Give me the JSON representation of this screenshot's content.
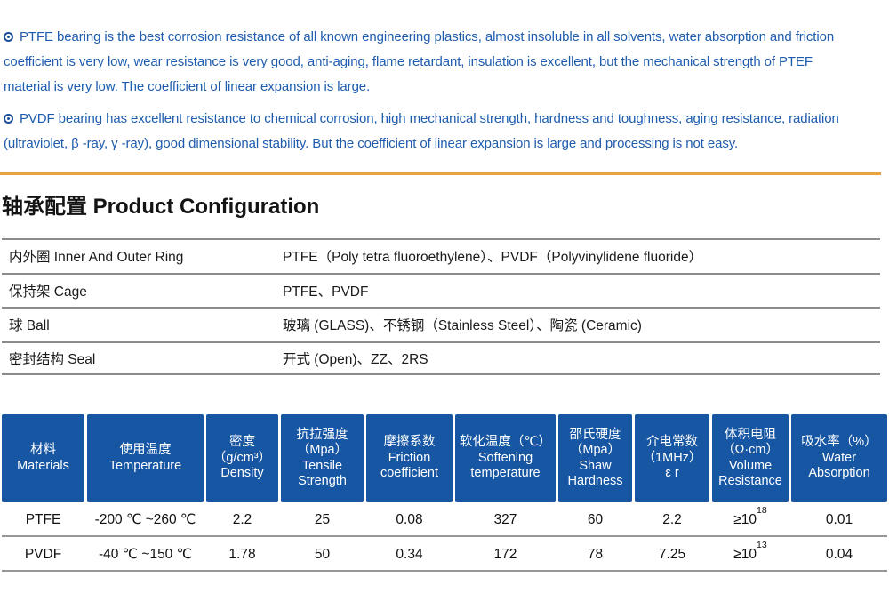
{
  "colors": {
    "paragraph_text_blue": "#1e5cae",
    "bullet_blue": "#1b4e9b",
    "rule_orange": "#e9a440",
    "table_header_blue": "#1656a3",
    "divider_gray": "#8c8c8c"
  },
  "intro": {
    "paragraphs": [
      {
        "lines": [
          "PTFE bearing is the best corrosion resistance of all known engineering plastics, almost insoluble in all solvents, water absorption and friction",
          "coefficient is very low, wear resistance is very good, anti-aging, flame retardant, insulation is excellent, but the mechanical strength of PTEF",
          "material is very low. The coefficient of linear expansion is large."
        ]
      },
      {
        "lines": [
          "PVDF bearing has excellent resistance to chemical corrosion, high mechanical strength, hardness and toughness, aging resistance, radiation",
          "(ultraviolet, β -ray, γ -ray), good dimensional stability. But the coefficient of linear expansion is large and processing is not easy."
        ]
      }
    ]
  },
  "section": {
    "title": "轴承配置 Product Configuration"
  },
  "config_table": {
    "rows": [
      {
        "label": "内外圈 Inner And Outer Ring",
        "value": "PTFE（Poly tetra fluoroethylene）、PVDF（Polyvinylidene fluoride）"
      },
      {
        "label": "保持架 Cage",
        "value": "PTFE、PVDF"
      },
      {
        "label": "球 Ball",
        "value": "玻璃 (GLASS)、不锈钢（Stainless Steel）、陶瓷 (Ceramic)"
      },
      {
        "label": "密封结构 Seal",
        "value": "开式 (Open)、ZZ、2RS"
      }
    ]
  },
  "spec_table": {
    "headers": [
      {
        "lines": [
          "材料",
          "Materials"
        ]
      },
      {
        "lines": [
          "使用温度",
          "Temperature"
        ]
      },
      {
        "lines": [
          "密度",
          "（g/cm³）",
          "Density"
        ]
      },
      {
        "lines": [
          "抗拉强度",
          "（Mpa）",
          "Tensile",
          "Strength"
        ]
      },
      {
        "lines": [
          "摩擦系数",
          "Friction",
          "coefficient"
        ]
      },
      {
        "lines": [
          "软化温度（℃）",
          "Softening",
          "temperature"
        ]
      },
      {
        "lines": [
          "邵氏硬度",
          "（Mpa）",
          "Shaw",
          "Hardness"
        ]
      },
      {
        "lines": [
          "介电常数",
          "（1MHz）",
          "ε r"
        ]
      },
      {
        "lines": [
          "体积电阻",
          "（Ω·cm）",
          "Volume",
          "Resistance"
        ]
      },
      {
        "lines": [
          "吸水率（%）",
          "Water",
          "Absorption"
        ]
      }
    ],
    "rows": [
      {
        "material": "PTFE",
        "temperature": "-200 ℃ ~260 ℃",
        "density": "2.2",
        "tensile_strength": "25",
        "friction": "0.08",
        "softening": "327",
        "hardness": "60",
        "dielectric": "2.2",
        "volume_base": "≥10",
        "volume_exp": "18",
        "water_absorption": "0.01"
      },
      {
        "material": "PVDF",
        "temperature": "-40 ℃ ~150 ℃",
        "density": "1.78",
        "tensile_strength": "50",
        "friction": "0.34",
        "softening": "172",
        "hardness": "78",
        "dielectric": "7.25",
        "volume_base": "≥10",
        "volume_exp": "13",
        "water_absorption": "0.04"
      }
    ]
  }
}
